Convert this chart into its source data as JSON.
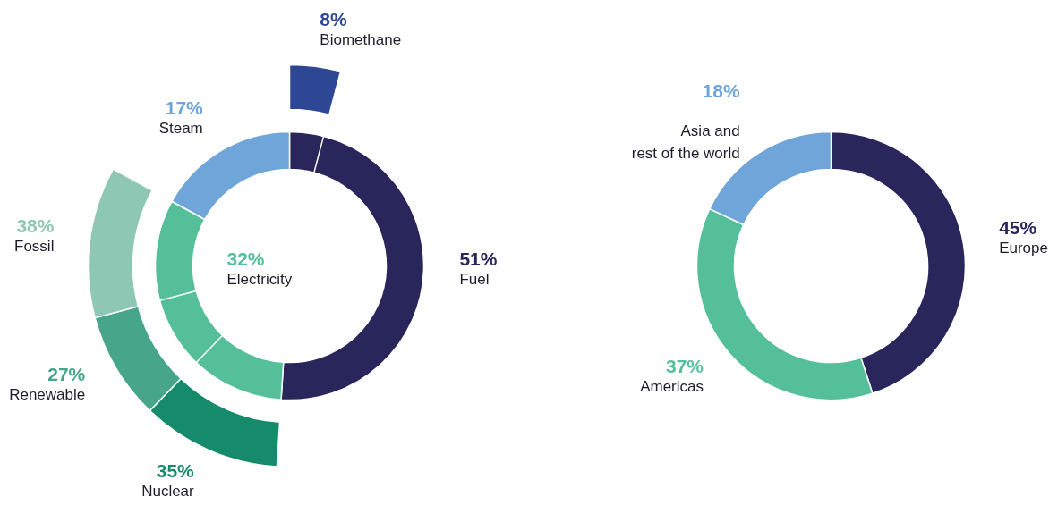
{
  "chart_data": [
    {
      "type": "donut",
      "categories": [
        "Fuel",
        "Electricity",
        "Steam"
      ],
      "values": [
        51,
        32,
        17
      ],
      "colors": [
        "#29265b",
        "#55bf9a",
        "#6fa5d8"
      ],
      "data_labels": true,
      "value_labels": [
        "51%",
        "32%",
        "17%"
      ]
    },
    {
      "type": "other",
      "categories": [
        "Biomethane"
      ],
      "values": [
        8
      ],
      "colors": [
        "#2d4795"
      ],
      "data_labels": true,
      "value_labels": [
        "8%"
      ]
    },
    {
      "type": "other",
      "categories": [
        "Nuclear",
        "Renewable",
        "Fossil"
      ],
      "values": [
        35,
        27,
        38
      ],
      "colors": [
        "#168b6c",
        "#47a68a",
        "#8fc7b5"
      ],
      "data_labels": true,
      "value_labels": [
        "35%",
        "27%",
        "38%"
      ]
    },
    {
      "type": "donut",
      "categories": [
        "Europe",
        "Americas",
        "Asia and\nrest of the world"
      ],
      "values": [
        45,
        37,
        18
      ],
      "colors": [
        "#29265b",
        "#55bf9a",
        "#6fa5d8"
      ],
      "data_labels": true,
      "value_labels": [
        "45%",
        "37%",
        "18%"
      ]
    }
  ]
}
